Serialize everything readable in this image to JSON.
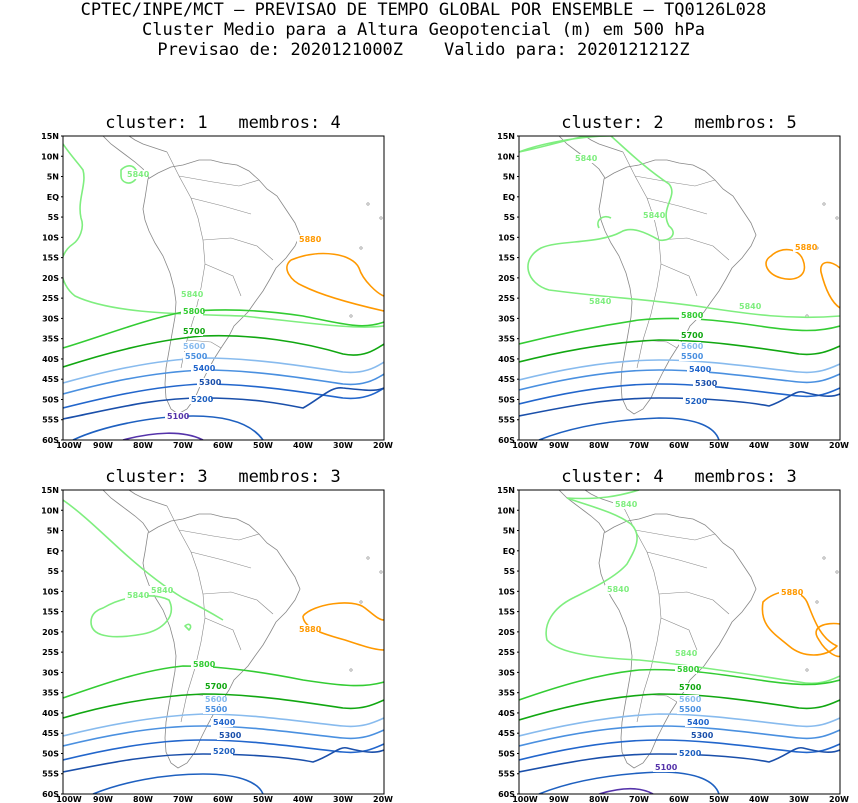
{
  "header": {
    "line1": "CPTEC/INPE/MCT – PREVISAO DE TEMPO GLOBAL POR ENSEMBLE – TQ0126L028",
    "line2": "Cluster Medio para a Altura Geopotencial (m) em 500 hPa",
    "line3": "Previsao de: 2020121000Z    Valido para: 2020121212Z"
  },
  "lat_labels": [
    "15N",
    "10N",
    "5N",
    "EQ",
    "5S",
    "10S",
    "15S",
    "20S",
    "25S",
    "30S",
    "35S",
    "40S",
    "45S",
    "50S",
    "55S",
    "60S"
  ],
  "lon_labels": [
    "100W",
    "90W",
    "80W",
    "70W",
    "60W",
    "50W",
    "40W",
    "30W",
    "20W"
  ],
  "colors": {
    "c5880": "#ff9900",
    "c5840": "#7fee7f",
    "c5800": "#33cc33",
    "c5700": "#11a711",
    "c5600": "#88bbee",
    "c5500": "#4a90e0",
    "c5400": "#2266cc",
    "c5300": "#1a4faa",
    "c5200": "#1e60c0",
    "c5100": "#5533aa",
    "coast": "#888888"
  },
  "panels": [
    {
      "title": "cluster: 1   membros: 4",
      "labels": [
        "5840",
        "5880",
        "5840",
        "5800",
        "5700",
        "5600",
        "5500",
        "5400",
        "5300",
        "5200",
        "5100"
      ]
    },
    {
      "title": "cluster: 2   membros: 5",
      "labels": [
        "5840",
        "5840",
        "5880",
        "5840",
        "5840",
        "5800",
        "5700",
        "5600",
        "5500",
        "5400",
        "5300",
        "5200"
      ]
    },
    {
      "title": "cluster: 3   membros: 3",
      "labels": [
        "5840",
        "5840",
        "5880",
        "5800",
        "5700",
        "5600",
        "5500",
        "5400",
        "5300",
        "5200"
      ]
    },
    {
      "title": "cluster: 4   membros: 3",
      "labels": [
        "5840",
        "5840",
        "5880",
        "5840",
        "5800",
        "5700",
        "5600",
        "5500",
        "5400",
        "5300",
        "5200",
        "5100"
      ]
    }
  ]
}
